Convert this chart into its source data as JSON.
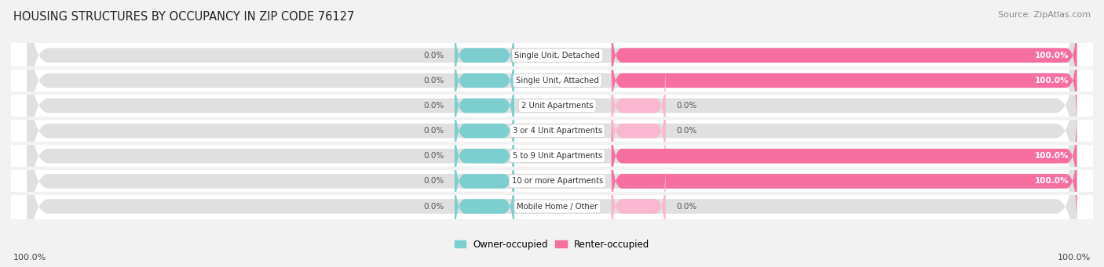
{
  "title": "HOUSING STRUCTURES BY OCCUPANCY IN ZIP CODE 76127",
  "source": "Source: ZipAtlas.com",
  "categories": [
    "Single Unit, Detached",
    "Single Unit, Attached",
    "2 Unit Apartments",
    "3 or 4 Unit Apartments",
    "5 to 9 Unit Apartments",
    "10 or more Apartments",
    "Mobile Home / Other"
  ],
  "owner_pct": [
    0.0,
    0.0,
    0.0,
    0.0,
    0.0,
    0.0,
    0.0
  ],
  "renter_pct": [
    100.0,
    100.0,
    0.0,
    0.0,
    100.0,
    100.0,
    0.0
  ],
  "owner_color": "#7dcfcf",
  "renter_color": "#f76fa0",
  "renter_color_light": "#f9b8cf",
  "bg_color": "#f2f2f2",
  "row_bg_color": "#ffffff",
  "bar_bg_color": "#e0e0e0",
  "title_color": "#222222",
  "label_color": "#444444",
  "pct_label_color": "#555555",
  "source_color": "#888888",
  "axis_label_left": "100.0%",
  "axis_label_right": "100.0%",
  "figsize": [
    14.06,
    3.41
  ],
  "dpi": 100
}
